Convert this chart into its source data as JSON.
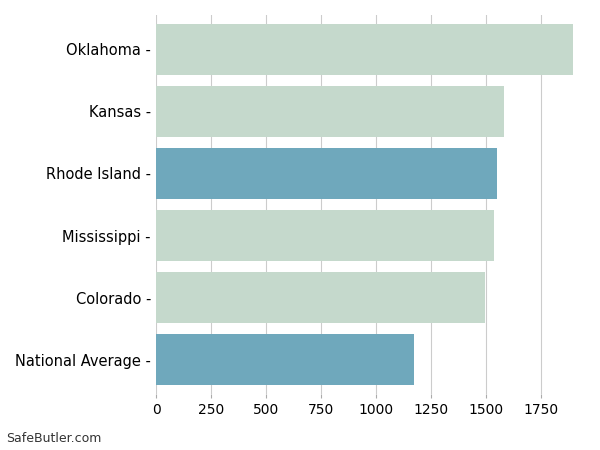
{
  "categories": [
    "National Average",
    "Colorado",
    "Mississippi",
    "Rhode Island",
    "Kansas",
    "Oklahoma"
  ],
  "values": [
    1173,
    1495,
    1536,
    1551,
    1583,
    1897
  ],
  "bar_colors": [
    "#6fa8bc",
    "#c5d9cc",
    "#c5d9cc",
    "#6fa8bc",
    "#c5d9cc",
    "#c5d9cc"
  ],
  "xlim": [
    0,
    1950
  ],
  "xticks": [
    0,
    250,
    500,
    750,
    1000,
    1250,
    1500,
    1750
  ],
  "background_color": "#ffffff",
  "grid_color": "#cccccc",
  "bar_height": 0.82,
  "label_fontsize": 10.5,
  "tick_fontsize": 10,
  "footer_text": "SafeButler.com"
}
